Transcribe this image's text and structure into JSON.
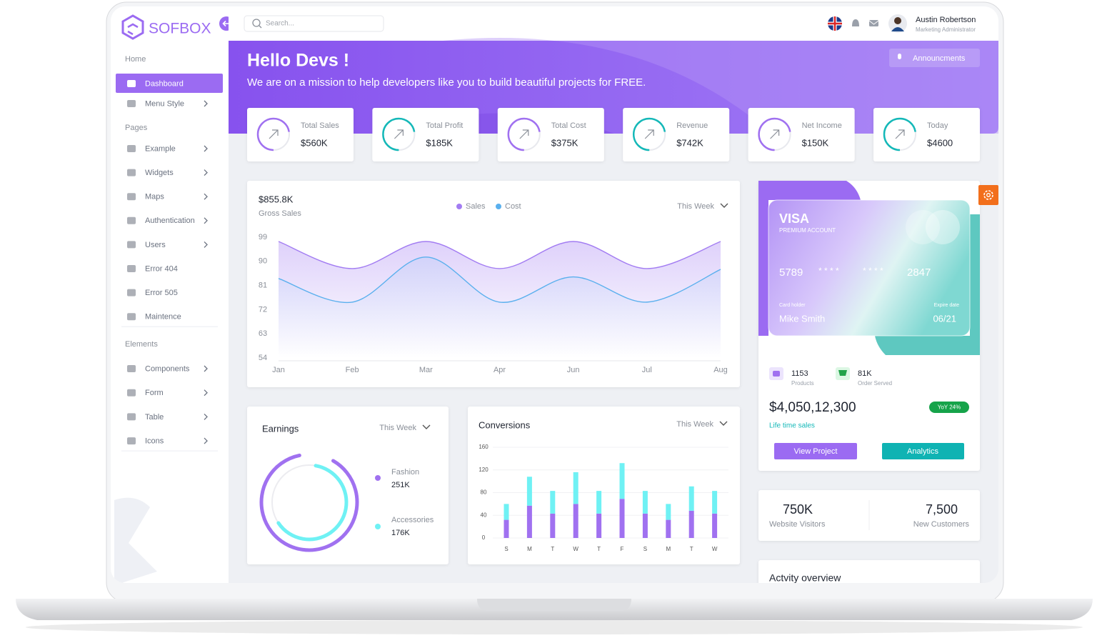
{
  "header": {
    "logo": "SOFBOX",
    "search_placeholder": "Search...",
    "user_name": "Austin Robertson",
    "user_role": "Marketing Administrator"
  },
  "sidebar": {
    "sections": [
      {
        "title": "Home",
        "items": [
          {
            "label": "Dashboard",
            "active": true,
            "submenu": false
          },
          {
            "label": "Menu Style",
            "active": false,
            "submenu": true
          }
        ]
      },
      {
        "title": "Pages",
        "items": [
          {
            "label": "Example",
            "active": false,
            "submenu": true
          },
          {
            "label": "Widgets",
            "active": false,
            "submenu": true
          },
          {
            "label": "Maps",
            "active": false,
            "submenu": true
          },
          {
            "label": "Authentication",
            "active": false,
            "submenu": true
          },
          {
            "label": "Users",
            "active": false,
            "submenu": true
          },
          {
            "label": "Error 404",
            "active": false,
            "submenu": false
          },
          {
            "label": "Error 505",
            "active": false,
            "submenu": false
          },
          {
            "label": "Maintence",
            "active": false,
            "submenu": false
          }
        ]
      },
      {
        "title": "Elements",
        "items": [
          {
            "label": "Components",
            "active": false,
            "submenu": true
          },
          {
            "label": "Form",
            "active": false,
            "submenu": true
          },
          {
            "label": "Table",
            "active": false,
            "submenu": true
          },
          {
            "label": "Icons",
            "active": false,
            "submenu": true
          }
        ]
      }
    ]
  },
  "banner": {
    "title": "Hello Devs !",
    "subtitle": "We are on a mission to help developers like you to build beautiful projects for FREE.",
    "button": "Announcments"
  },
  "stats": [
    {
      "label": "Total Sales",
      "value": "$560K"
    },
    {
      "label": "Total Profit",
      "value": "$185K"
    },
    {
      "label": "Total Cost",
      "value": "$375K"
    },
    {
      "label": "Revenue",
      "value": "$742K"
    },
    {
      "label": "Net Income",
      "value": "$150K"
    },
    {
      "label": "Today",
      "value": "$4600"
    }
  ],
  "chart_data": [
    {
      "type": "line",
      "title": "$855.8K",
      "subtitle": "Gross Sales",
      "period": "This Week",
      "categories": [
        "Jan",
        "Feb",
        "Mar",
        "Apr",
        "Jun",
        "Jul",
        "Aug"
      ],
      "series": [
        {
          "name": "Sales",
          "color": "#a27cf2",
          "values": [
            97.4,
            87.3,
            97.4,
            87.3,
            97.4,
            87.3,
            97.4
          ]
        },
        {
          "name": "Cost",
          "color": "#5ab0ee",
          "values": [
            83.6,
            74.8,
            91.6,
            74.8,
            84.2,
            74.8,
            87.0
          ]
        }
      ],
      "ylim": [
        54,
        99
      ],
      "yticks": [
        54,
        63,
        72,
        81,
        90,
        99
      ],
      "grid": false
    },
    {
      "type": "bar",
      "stacked": true,
      "title": "Conversions",
      "period": "This Week",
      "categories": [
        "S",
        "M",
        "T",
        "W",
        "T",
        "F",
        "S",
        "M",
        "T",
        "W"
      ],
      "series": [
        {
          "color": "#a071f0",
          "values": [
            32,
            57,
            43,
            60,
            43,
            69,
            43,
            32,
            48,
            43
          ]
        },
        {
          "color": "#6ff1f4",
          "values": [
            28,
            51,
            40,
            56,
            40,
            63,
            40,
            28,
            43,
            40
          ]
        }
      ],
      "ylim": [
        0,
        160
      ],
      "yticks": [
        0,
        40,
        80,
        120,
        160
      ],
      "grid": true
    }
  ],
  "earnings": {
    "title": "Earnings",
    "period": "This Week",
    "items": [
      {
        "label": "Fashion",
        "value": "251K"
      },
      {
        "label": "Accessories",
        "value": "176K"
      }
    ]
  },
  "card": {
    "brand": "VISA",
    "tier": "PREMIUM ACCOUNT",
    "number": [
      "5789",
      "* * * *",
      "* * * *",
      "2847"
    ],
    "holder_label": "Card holder",
    "holder": "Mike Smith",
    "expiry_label": "Expire date",
    "expiry": "06/21"
  },
  "summary": {
    "products": "1153",
    "products_label": "Products",
    "orders": "81K",
    "orders_label": "Order Served",
    "total": "$4,050,12,300",
    "total_label": "Life time sales",
    "badge": "YoY 24%",
    "buttons": [
      "View Project",
      "Analytics"
    ]
  },
  "visitors": [
    {
      "value": "750K",
      "label": "Website Visitors"
    },
    {
      "value": "7,500",
      "label": "New Customers"
    }
  ],
  "activity": {
    "title": "Actvity overview"
  }
}
